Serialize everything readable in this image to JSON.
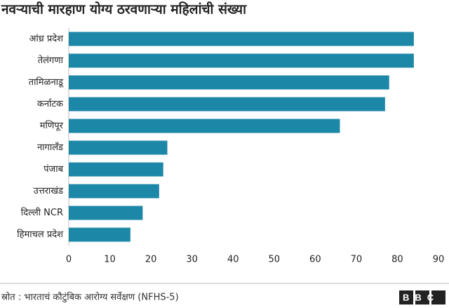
{
  "chart_data": {
    "type": "bar",
    "orientation": "horizontal",
    "title": "नवऱ्याची मारहाण योग्य ठरवणाऱ्या महिलांची संख्या",
    "categories": [
      "आंध्र प्रदेश",
      "तेलंगणा",
      "तामिळनाडू",
      "कर्नाटक",
      "मणिपूर",
      "नागालँड",
      "पंजाब",
      "उत्तराखंड",
      "दिल्ली NCR",
      "हिमाचल प्रदेश"
    ],
    "values": [
      84,
      84,
      78,
      77,
      66,
      24,
      23,
      22,
      18,
      15
    ],
    "color": "#1d87a8",
    "xlim": [
      0,
      90
    ],
    "xticks": [
      0,
      10,
      20,
      30,
      40,
      50,
      60,
      70,
      80,
      90
    ],
    "source": "स्रोत : भारताचं कौटुंबिक आरोग्य सर्वेक्षण (NFHS-5)",
    "logo": "BBC"
  }
}
